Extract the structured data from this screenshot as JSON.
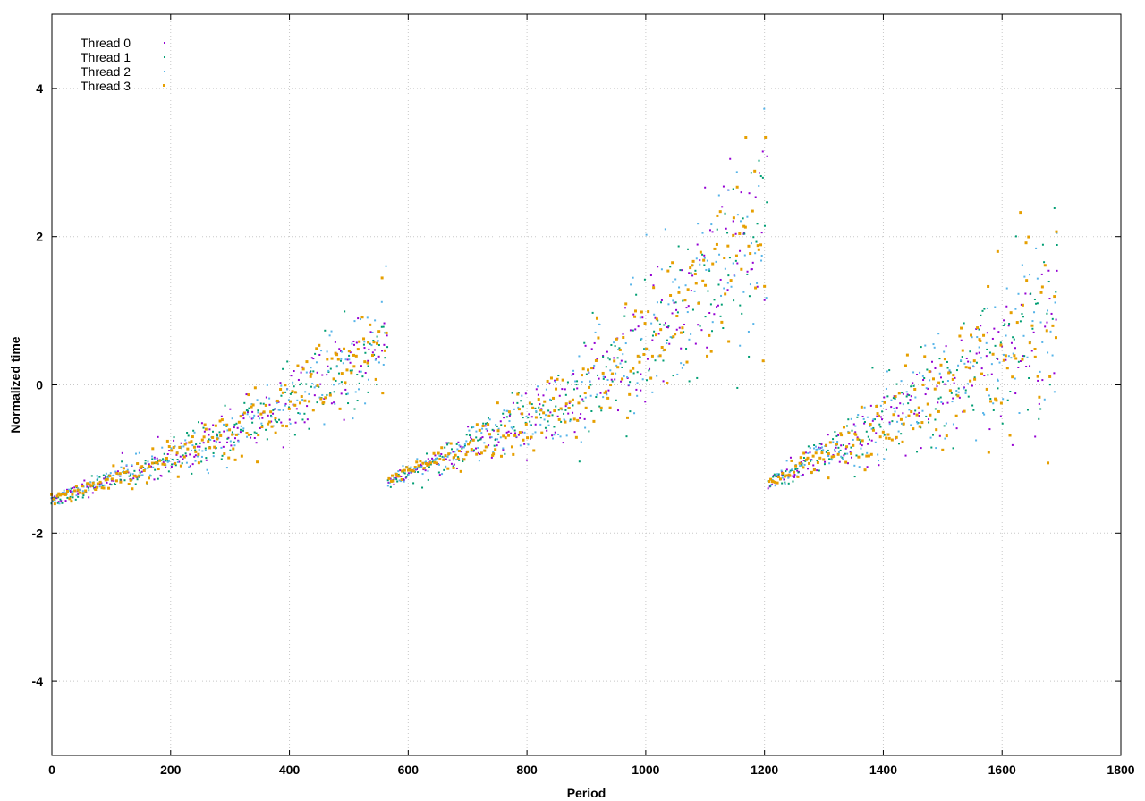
{
  "chart_data": {
    "type": "scatter",
    "title": "",
    "xlabel": "Period",
    "ylabel": "Normalized time",
    "xlim": [
      0,
      1800
    ],
    "ylim": [
      -5,
      5
    ],
    "xticks": [
      0,
      200,
      400,
      600,
      800,
      1000,
      1200,
      1400,
      1600,
      1800
    ],
    "yticks": [
      -4,
      -2,
      0,
      2,
      4
    ],
    "grid": true,
    "legend_position": "top-left",
    "series": [
      {
        "name": "Thread 0",
        "color": "#9400d3",
        "marker": "dot",
        "seed": 11
      },
      {
        "name": "Thread 1",
        "color": "#009e73",
        "marker": "dot",
        "seed": 23
      },
      {
        "name": "Thread 2",
        "color": "#56b4e9",
        "marker": "dot",
        "seed": 37
      },
      {
        "name": "Thread 3",
        "color": "#e69f00",
        "marker": "square",
        "seed": 53
      }
    ],
    "segments": [
      {
        "x_start": 0,
        "x_end": 565,
        "y_start": -1.55,
        "y_mid": -0.75,
        "y_end": 0.55,
        "spread_start": 0.04,
        "spread_end": 0.35
      },
      {
        "x_start": 567,
        "x_end": 1205,
        "y_start": -1.3,
        "y_mid": -0.2,
        "y_end": 2.2,
        "spread_start": 0.05,
        "spread_end": 0.7
      },
      {
        "x_start": 1207,
        "x_end": 1695,
        "y_start": -1.35,
        "y_mid": -0.25,
        "y_end": 0.9,
        "spread_start": 0.05,
        "spread_end": 0.75
      }
    ],
    "points_per_series_step": 3
  }
}
